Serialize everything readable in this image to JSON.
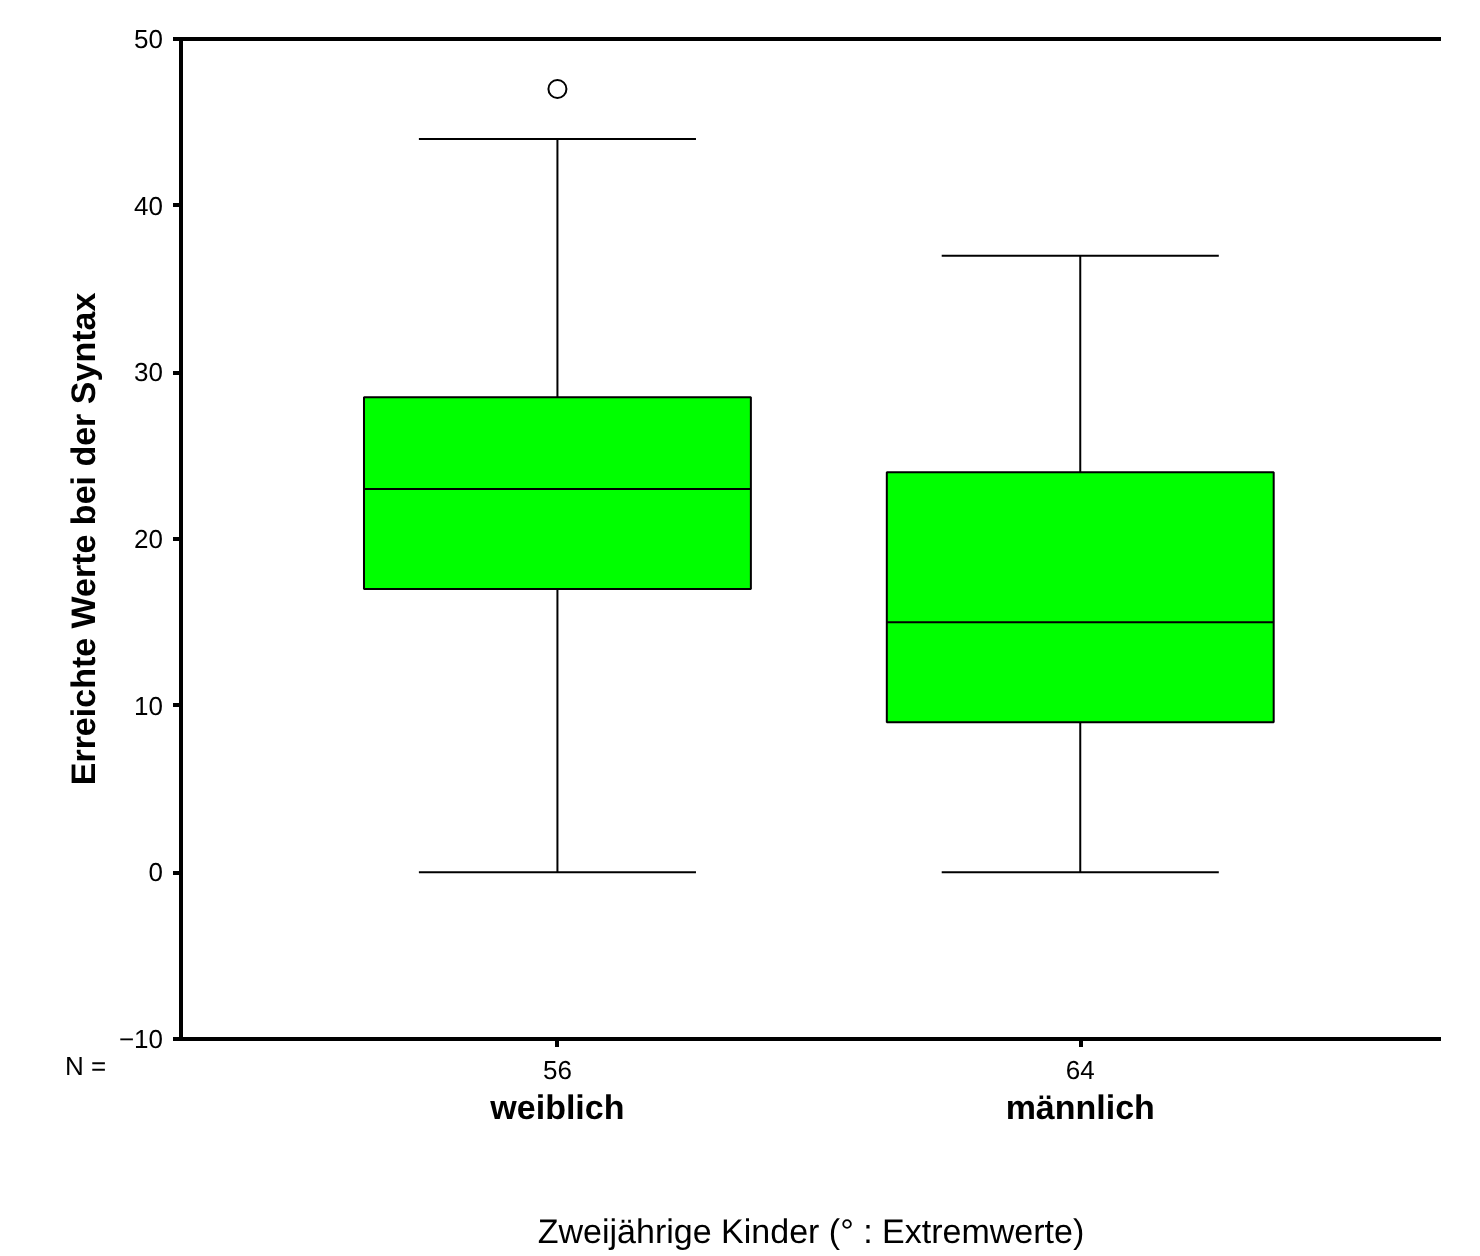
{
  "chart_data": {
    "type": "box",
    "xlabel": "Zweijährige Kinder (° : Extremwerte)",
    "ylabel": "Erreichte Werte bei der Syntax",
    "categories": [
      "weiblich",
      "männlich"
    ],
    "boxes": [
      {
        "low": 0,
        "q1": 17,
        "median": 23,
        "q3": 28.5,
        "high": 44,
        "outliers": [
          47
        ]
      },
      {
        "low": 0,
        "q1": 9,
        "median": 15,
        "q3": 24,
        "high": 37
      }
    ],
    "color": "#00ff00",
    "ylim": [
      -10,
      50
    ],
    "yticks": [
      -10,
      0,
      10,
      20,
      30,
      40,
      50
    ],
    "grid": false,
    "annotations": [
      "N =",
      "56",
      "64"
    ]
  }
}
